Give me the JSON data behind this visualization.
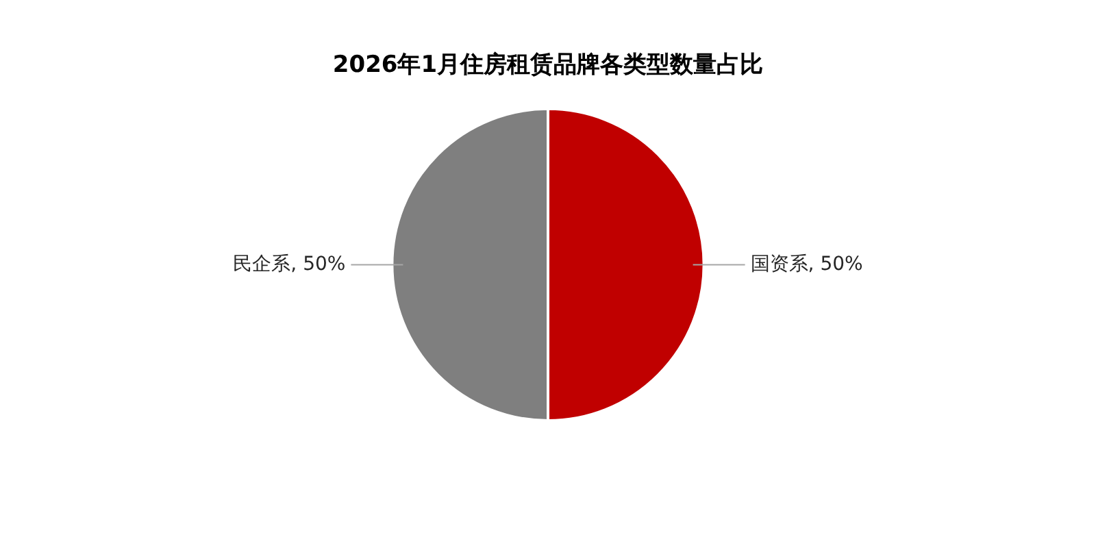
{
  "chart_data": {
    "type": "pie",
    "title": "2026年1月住房租赁品牌各类型数量占比",
    "categories": [
      "国资系",
      "民企系"
    ],
    "values": [
      50,
      50
    ],
    "colors": [
      "#c00000",
      "#7f7f7f"
    ],
    "value_labels": [
      "50%",
      "50%"
    ],
    "legend": false
  }
}
